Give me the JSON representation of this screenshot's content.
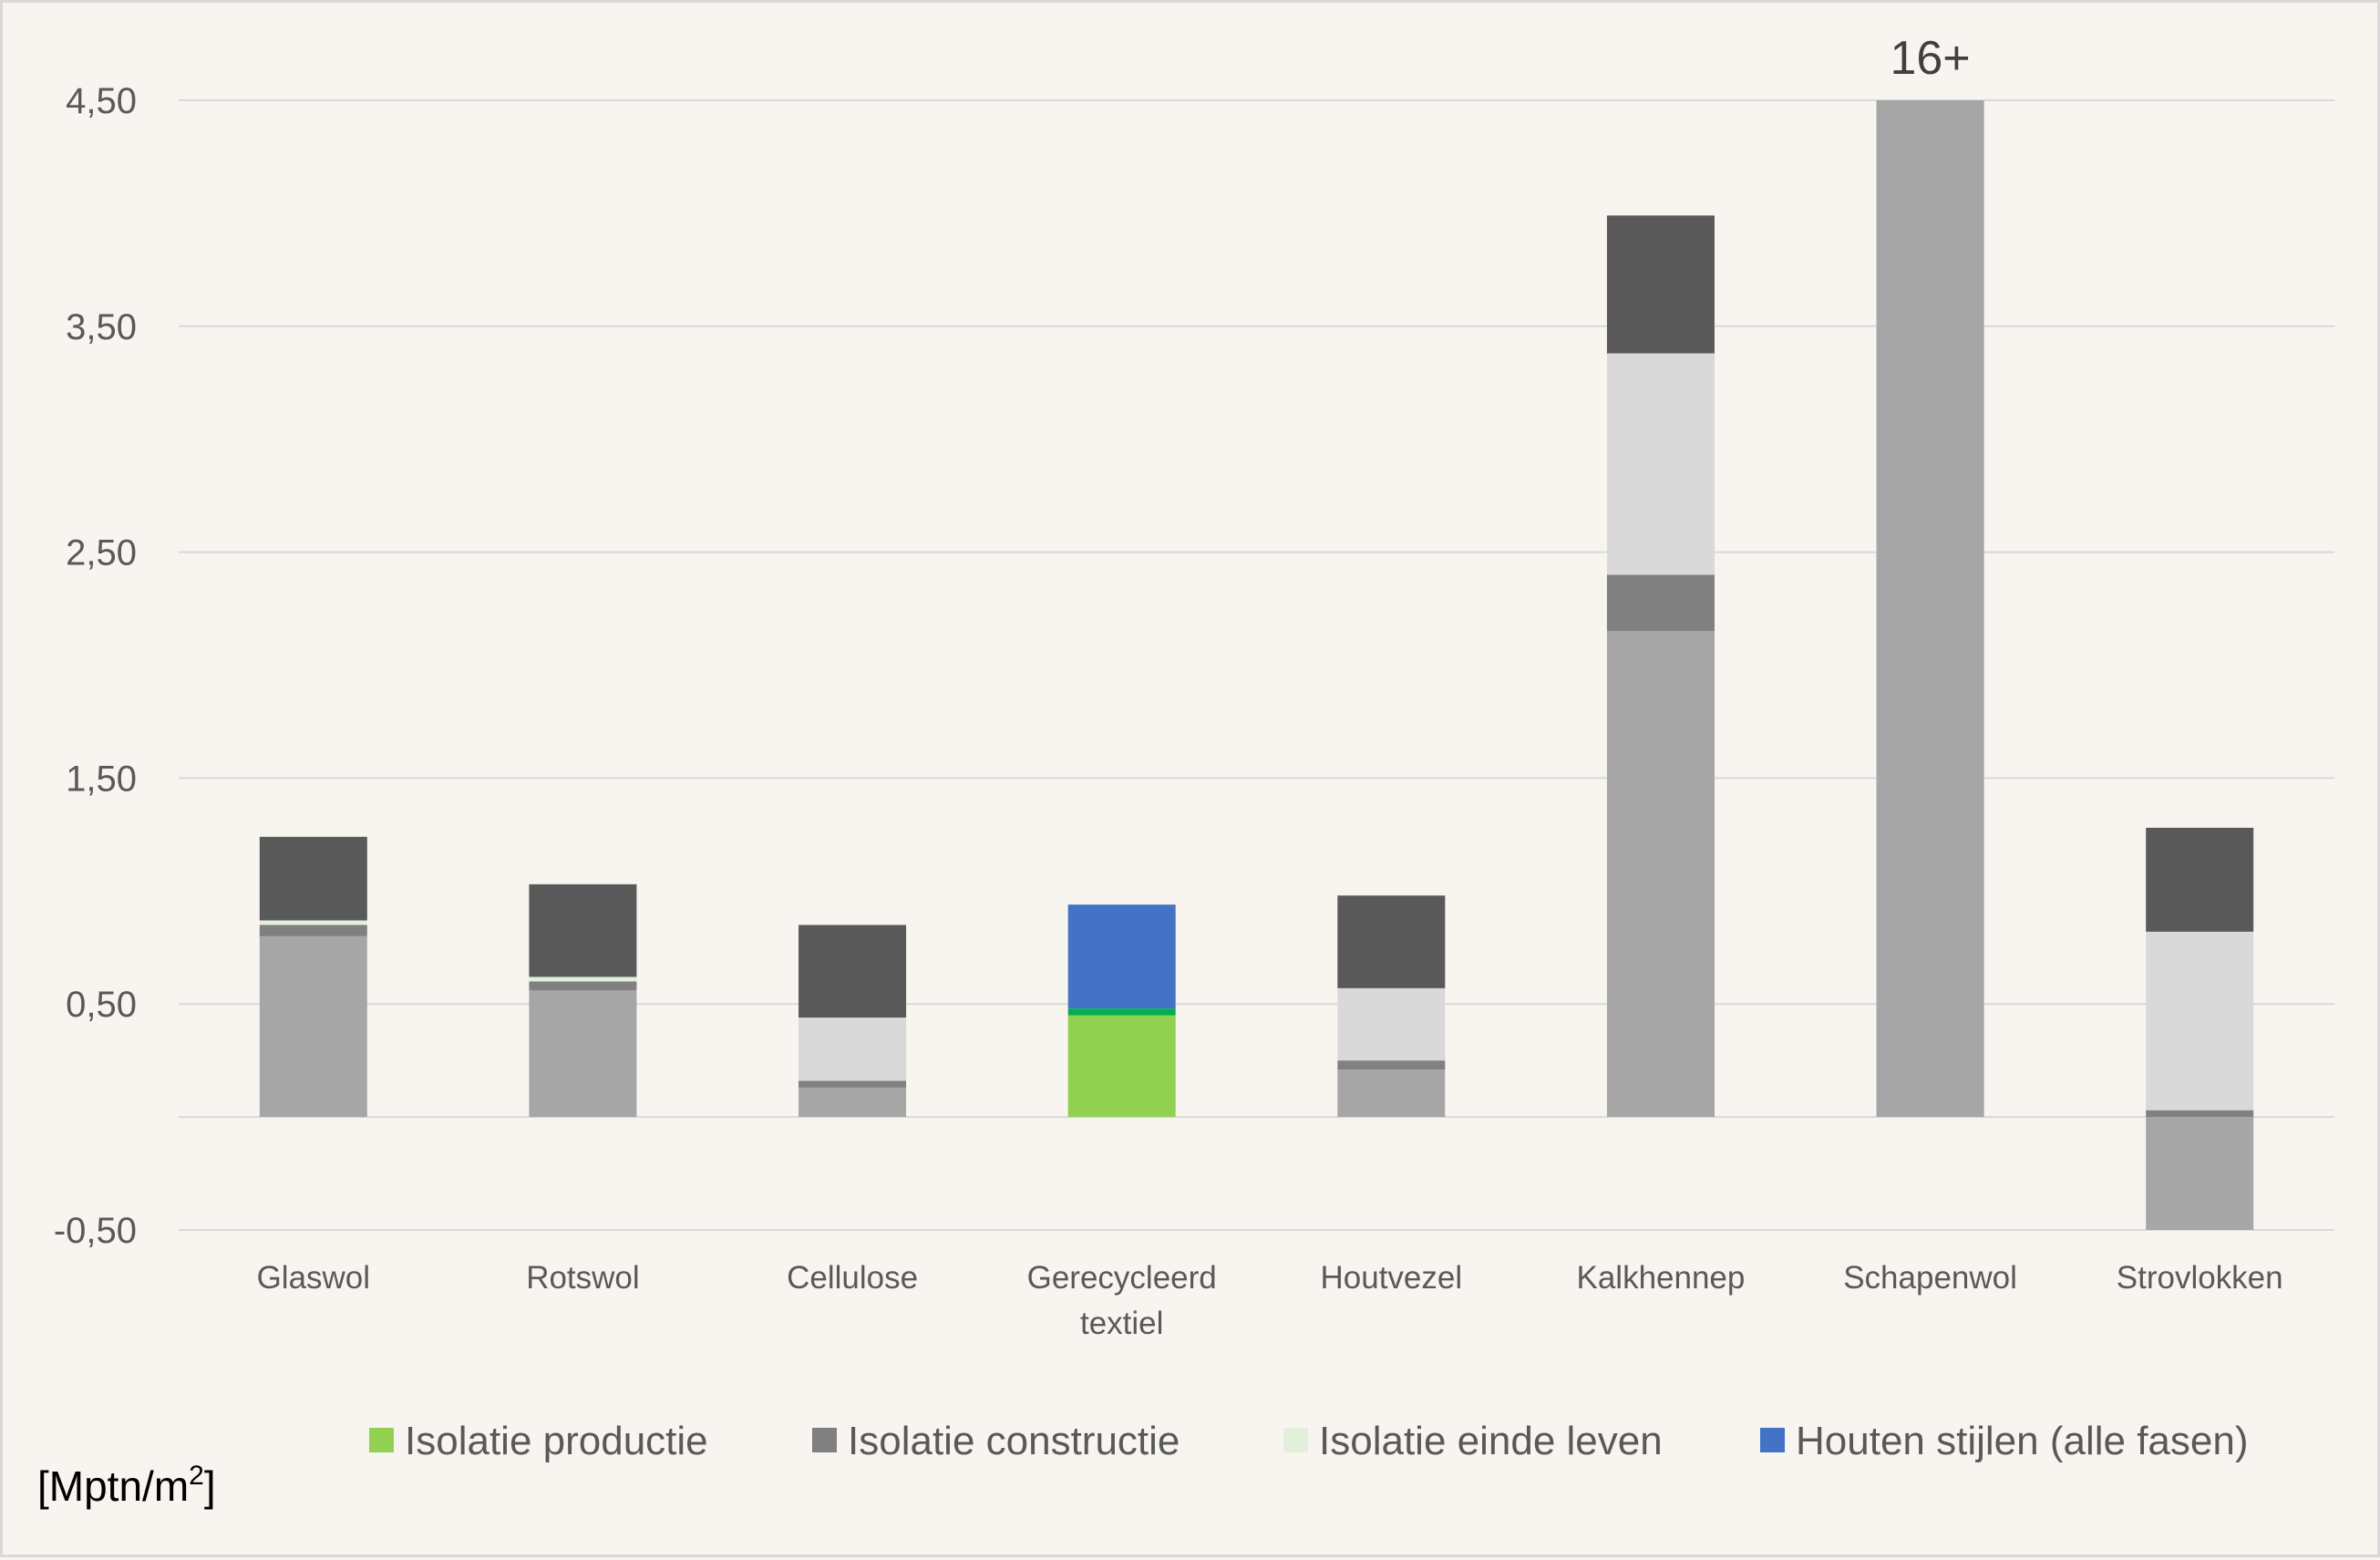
{
  "chart_data": {
    "type": "bar",
    "stacked": true,
    "unit": "[Mptn/m2]",
    "unit_main": "[Mptn/m",
    "unit_sup": "2",
    "unit_close": "]",
    "y_ticks": [
      "4,50",
      "3,50",
      "2,50",
      "1,50",
      "0,50",
      "-0,50"
    ],
    "y_tick_values": [
      4.5,
      3.5,
      2.5,
      1.5,
      0.5,
      -0.5
    ],
    "ylim": [
      -0.5,
      4.5
    ],
    "grid": true,
    "legend_position": "bottom",
    "categories": [
      [
        "Glaswol"
      ],
      [
        "Rotswol"
      ],
      [
        "Cellulose"
      ],
      [
        "Gerecycleerd",
        "textiel"
      ],
      [
        "Houtvezel"
      ],
      [
        "Kalkhennep"
      ],
      [
        "Schapenwol"
      ],
      [
        "Strovlokken"
      ]
    ],
    "annotations": [
      {
        "category_index": 6,
        "text": "16+"
      }
    ],
    "legend": [
      {
        "name": "Isolatie productie",
        "color": "#92d050"
      },
      {
        "name": "Isolatie constructie",
        "color": "#808080"
      },
      {
        "name": "Isolatie einde leven",
        "color": "#e2efda"
      },
      {
        "name": "Houten stijlen (alle fasen)",
        "color": "#4472c4"
      }
    ],
    "stacks": [
      [
        {
          "value": 0.8,
          "color": "#a6a6a6"
        },
        {
          "value": 0.05,
          "color": "#808080"
        },
        {
          "value": 0.02,
          "color": "#e2efda"
        },
        {
          "value": 0.37,
          "color": "#595959"
        }
      ],
      [
        {
          "value": 0.56,
          "color": "#a6a6a6"
        },
        {
          "value": 0.04,
          "color": "#808080"
        },
        {
          "value": 0.02,
          "color": "#e2efda"
        },
        {
          "value": 0.41,
          "color": "#595959"
        }
      ],
      [
        {
          "value": 0.13,
          "color": "#a6a6a6"
        },
        {
          "value": 0.03,
          "color": "#808080"
        },
        {
          "value": 0.28,
          "color": "#d9d9d9"
        },
        {
          "value": 0.41,
          "color": "#595959"
        }
      ],
      [
        {
          "value": 0.45,
          "color": "#92d050"
        },
        {
          "value": 0.03,
          "color": "#00b050"
        },
        {
          "value": 0.46,
          "color": "#4472c4"
        }
      ],
      [
        {
          "value": 0.21,
          "color": "#a6a6a6"
        },
        {
          "value": 0.04,
          "color": "#808080"
        },
        {
          "value": 0.32,
          "color": "#d9d9d9"
        },
        {
          "value": 0.41,
          "color": "#595959"
        }
      ],
      [
        {
          "value": 2.15,
          "color": "#a6a6a6"
        },
        {
          "value": 0.25,
          "color": "#808080"
        },
        {
          "value": 0.98,
          "color": "#d9d9d9"
        },
        {
          "value": 0.61,
          "color": "#595959"
        }
      ],
      [
        {
          "value": 4.5,
          "color": "#a6a6a6"
        }
      ],
      [
        {
          "value": -0.5,
          "color": "#a6a6a6"
        },
        {
          "value": 0.03,
          "color": "#808080"
        },
        {
          "value": 0.79,
          "color": "#d9d9d9"
        },
        {
          "value": 0.46,
          "color": "#595959"
        }
      ]
    ],
    "colors": {
      "grid": "#d9d9d9",
      "background": "#f8f5f0"
    }
  }
}
